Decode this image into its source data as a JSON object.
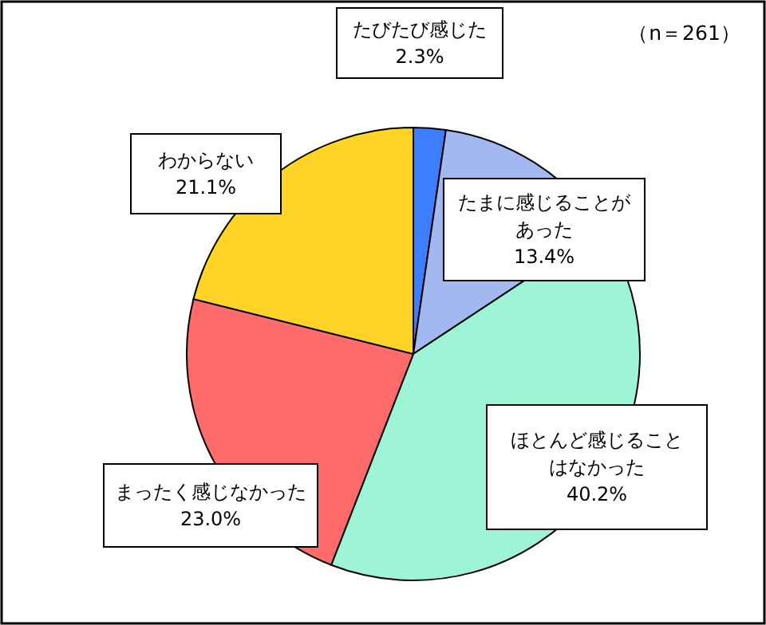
{
  "chart_data": {
    "type": "pie",
    "categories": [
      "たびたび感じた",
      "たまに感じることがあった",
      "ほとんど感じることはなかった",
      "まったく感じなかった",
      "わからない"
    ],
    "values": [
      2.3,
      13.4,
      40.2,
      23.0,
      21.1
    ],
    "value_labels": [
      "2.3%",
      "13.4%",
      "40.2%",
      "23.0%",
      "21.1%"
    ],
    "colors": [
      "#3d7dff",
      "#a3b8f0",
      "#9ef5d6",
      "#ff6b6b",
      "#ffd426"
    ],
    "annotations": [
      "（n＝261）"
    ]
  }
}
